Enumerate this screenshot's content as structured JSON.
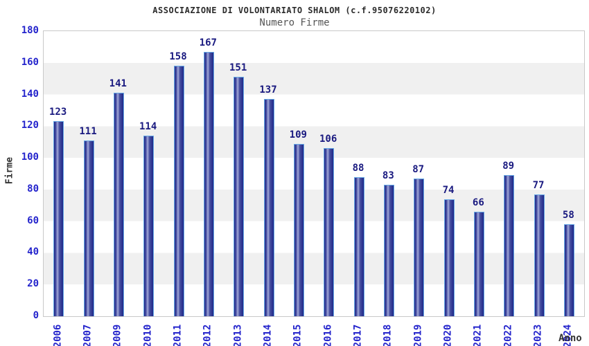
{
  "title": "ASSOCIAZIONE DI VOLONTARIATO SHALOM (c.f.95076220102)",
  "subtitle": "Numero Firme",
  "chart_data": {
    "type": "bar",
    "title": "ASSOCIAZIONE DI VOLONTARIATO SHALOM (c.f.95076220102)",
    "subtitle": "Numero Firme",
    "xlabel": "Anno",
    "ylabel": "Firme",
    "categories": [
      "2006",
      "2007",
      "2009",
      "2010",
      "2011",
      "2012",
      "2013",
      "2014",
      "2015",
      "2016",
      "2017",
      "2018",
      "2019",
      "2020",
      "2021",
      "2022",
      "2023",
      "2024"
    ],
    "values": [
      123,
      111,
      141,
      114,
      158,
      167,
      151,
      137,
      109,
      106,
      88,
      83,
      87,
      74,
      66,
      89,
      77,
      58
    ],
    "ylim": [
      0,
      180
    ],
    "yticks": [
      0,
      20,
      40,
      60,
      80,
      100,
      120,
      140,
      160,
      180
    ],
    "grid": "alternating horizontal bands every 20 units",
    "legend": "none",
    "value_labels_shown": true,
    "colors": {
      "tick_label": "#2424cc",
      "value_label": "#1a1a80",
      "bar_dark": "#1f2888",
      "bar_mid": "#4850a2",
      "bar_light": "#a3a9d8",
      "bar_outline": "#67aae6",
      "band_gray": "#f0f0f0",
      "plot_border": "#c8c8c8",
      "title_color": "#2b2b2b",
      "subtitle_color": "#555555",
      "axis_label_color": "#333333"
    }
  }
}
